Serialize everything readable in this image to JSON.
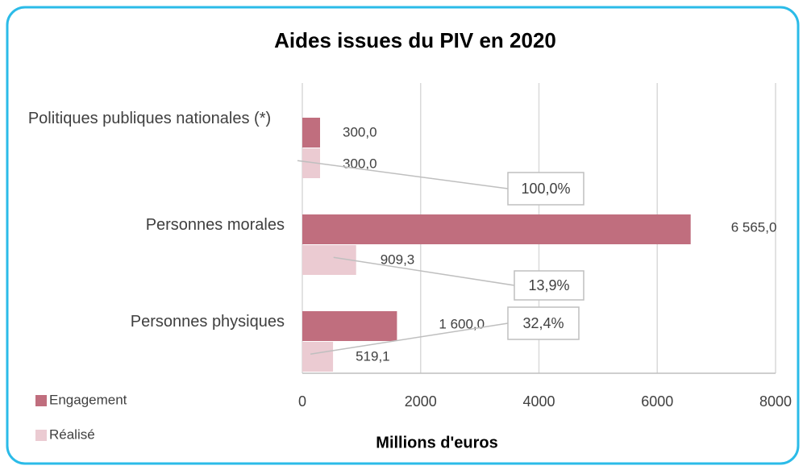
{
  "chart_data": {
    "type": "bar",
    "orientation": "horizontal",
    "title": "Aides issues du PIV en 2020",
    "xlabel": "Millions d'euros",
    "categories": [
      "Politiques publiques nationales (*)",
      "Personnes morales",
      "Personnes physiques"
    ],
    "series": [
      {
        "name": "Engagement",
        "color": "#c06e7e",
        "values": [
          300,
          6565,
          1600
        ],
        "value_labels": [
          "300,0",
          "6 565,0",
          "1 600,0"
        ]
      },
      {
        "name": "Réalisé",
        "color": "#ebcbd2",
        "values": [
          300,
          909.3,
          519.1
        ],
        "value_labels": [
          "300,0",
          "909,3",
          "519,1"
        ]
      }
    ],
    "ratio": {
      "values": [
        100,
        13.9,
        32.4
      ],
      "value_labels": [
        "100,0%",
        "13,9%",
        "32,4%"
      ]
    },
    "xlim": [
      0,
      8000
    ],
    "xticks": [
      0,
      2000,
      4000,
      6000,
      8000
    ],
    "grid": true,
    "legend": "bottom-left"
  }
}
